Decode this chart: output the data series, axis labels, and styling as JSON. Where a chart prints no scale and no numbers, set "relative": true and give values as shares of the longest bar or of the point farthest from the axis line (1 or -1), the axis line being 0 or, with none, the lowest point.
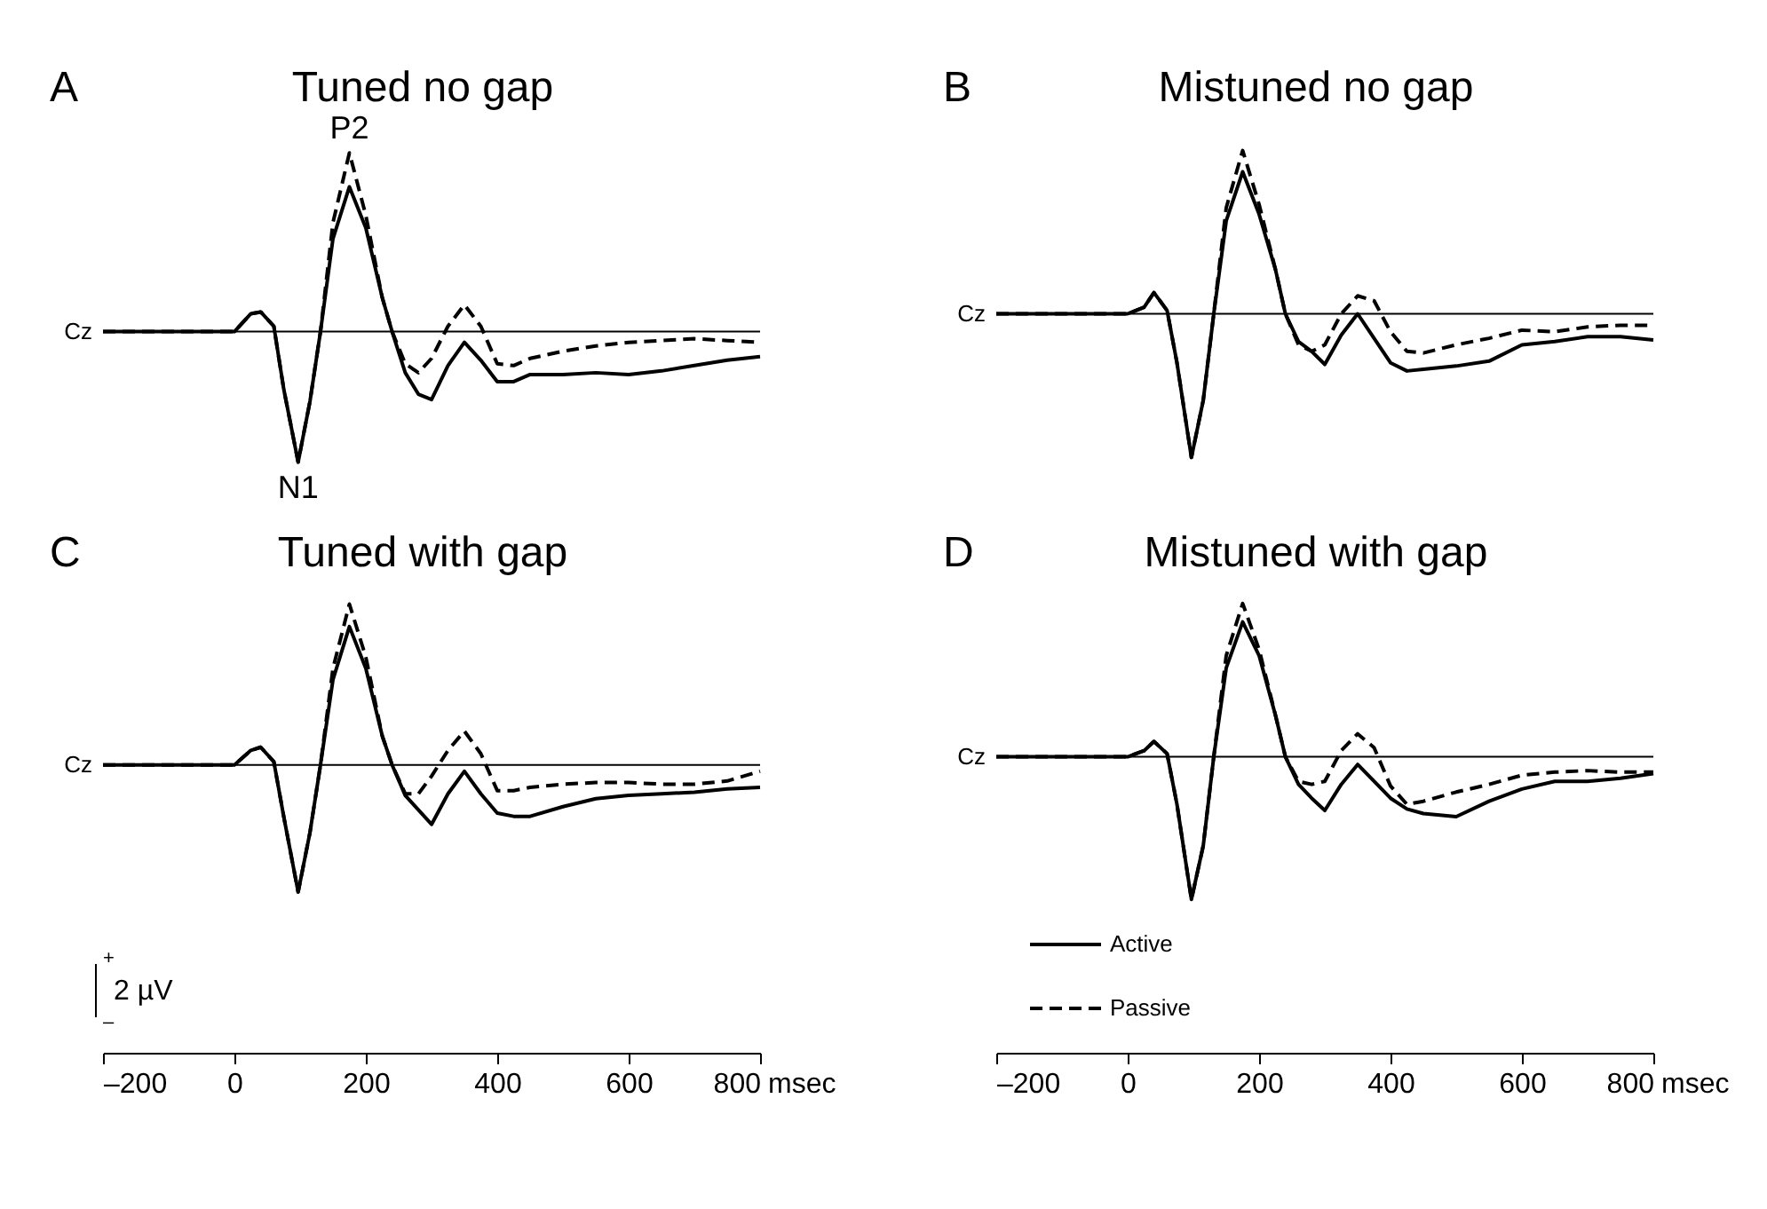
{
  "chart_data": [
    {
      "type": "line",
      "title": "Tuned no gap",
      "ylabel": "Cz",
      "relative": true,
      "tick_labels": false,
      "xlim": [
        -200,
        800
      ],
      "annotations": [
        "A",
        {
          "text": "P2",
          "x": 175,
          "y": 1
        },
        {
          "text": "N1",
          "x": 97,
          "y": -0.73
        }
      ],
      "x": [
        -200,
        -100,
        0,
        25,
        40,
        60,
        75,
        97,
        115,
        131,
        150,
        175,
        200,
        225,
        240,
        260,
        280,
        300,
        325,
        350,
        375,
        400,
        425,
        450,
        500,
        550,
        600,
        650,
        700,
        750,
        800
      ],
      "series": [
        {
          "color": "#000000",
          "line_style": "solid",
          "values": [
            0,
            0,
            0,
            0.1,
            0.11,
            0.03,
            -0.32,
            -0.73,
            -0.39,
            0,
            0.52,
            0.81,
            0.58,
            0.19,
            0,
            -0.23,
            -0.35,
            -0.38,
            -0.19,
            -0.06,
            -0.16,
            -0.28,
            -0.28,
            -0.24,
            -0.24,
            -0.23,
            -0.24,
            -0.22,
            -0.19,
            -0.16,
            -0.14
          ]
        },
        {
          "color": "#000000",
          "line_style": "dashed",
          "values": [
            0,
            0,
            0,
            0.1,
            0.11,
            0.03,
            -0.32,
            -0.73,
            -0.39,
            0,
            0.61,
            1,
            0.65,
            0.19,
            0,
            -0.18,
            -0.23,
            -0.15,
            0.03,
            0.15,
            0.03,
            -0.18,
            -0.19,
            -0.15,
            -0.11,
            -0.08,
            -0.06,
            -0.05,
            -0.04,
            -0.05,
            -0.06
          ]
        }
      ]
    },
    {
      "type": "line",
      "title": "Mistuned no gap",
      "ylabel": "Cz",
      "relative": true,
      "tick_labels": false,
      "xlim": [
        -200,
        800
      ],
      "annotations": [
        "B"
      ],
      "x": [
        -200,
        -100,
        0,
        25,
        40,
        60,
        75,
        97,
        115,
        131,
        150,
        175,
        200,
        225,
        240,
        260,
        280,
        300,
        325,
        350,
        375,
        400,
        425,
        450,
        500,
        550,
        600,
        650,
        700,
        750,
        800
      ],
      "series": [
        {
          "color": "#000000",
          "line_style": "solid",
          "values": [
            0,
            0,
            0,
            0.04,
            0.13,
            0.02,
            -0.3,
            -0.88,
            -0.53,
            0,
            0.57,
            0.87,
            0.61,
            0.27,
            0,
            -0.17,
            -0.23,
            -0.31,
            -0.13,
            0,
            -0.15,
            -0.3,
            -0.35,
            -0.34,
            -0.32,
            -0.29,
            -0.19,
            -0.17,
            -0.14,
            -0.14,
            -0.16
          ]
        },
        {
          "color": "#000000",
          "line_style": "dashed",
          "values": [
            0,
            0,
            0,
            0.04,
            0.13,
            0.02,
            -0.3,
            -0.88,
            -0.53,
            0,
            0.65,
            1,
            0.67,
            0.27,
            0,
            -0.19,
            -0.23,
            -0.19,
            0,
            0.11,
            0.08,
            -0.11,
            -0.23,
            -0.24,
            -0.19,
            -0.15,
            -0.1,
            -0.11,
            -0.08,
            -0.07,
            -0.07
          ]
        }
      ]
    },
    {
      "type": "line",
      "title": "Tuned with gap",
      "ylabel": "Cz",
      "xlabel": "msec",
      "relative": true,
      "tick_labels": "x",
      "xlim": [
        -200,
        800
      ],
      "xticks": [
        {
          "value": -200,
          "label": "–200"
        },
        0,
        200,
        400,
        600,
        800
      ],
      "annotations": [
        "C",
        "+",
        "2 µV",
        "–"
      ],
      "x": [
        -200,
        -100,
        0,
        25,
        40,
        60,
        75,
        97,
        115,
        131,
        150,
        175,
        200,
        225,
        240,
        260,
        280,
        300,
        325,
        350,
        375,
        400,
        425,
        450,
        500,
        550,
        600,
        650,
        700,
        750,
        800
      ],
      "series": [
        {
          "color": "#000000",
          "line_style": "solid",
          "values": [
            0,
            0,
            0,
            0.09,
            0.11,
            0.02,
            -0.32,
            -0.79,
            -0.42,
            0,
            0.53,
            0.86,
            0.6,
            0.18,
            0,
            -0.19,
            -0.28,
            -0.37,
            -0.18,
            -0.04,
            -0.18,
            -0.3,
            -0.32,
            -0.32,
            -0.26,
            -0.21,
            -0.19,
            -0.18,
            -0.17,
            -0.15,
            -0.14
          ]
        },
        {
          "color": "#000000",
          "line_style": "dashed",
          "values": [
            0,
            0,
            0,
            0.09,
            0.11,
            0.02,
            -0.32,
            -0.79,
            -0.42,
            0,
            0.6,
            1,
            0.67,
            0.18,
            0,
            -0.18,
            -0.18,
            -0.07,
            0.09,
            0.21,
            0.07,
            -0.16,
            -0.16,
            -0.14,
            -0.12,
            -0.11,
            -0.11,
            -0.12,
            -0.12,
            -0.1,
            -0.04
          ]
        }
      ]
    },
    {
      "type": "line",
      "title": "Mistuned with gap",
      "ylabel": "Cz",
      "xlabel": "msec",
      "relative": true,
      "tick_labels": "x",
      "xlim": [
        -200,
        800
      ],
      "legend": "bottom left",
      "xticks": [
        {
          "value": -200,
          "label": "–200"
        },
        0,
        200,
        400,
        600,
        800
      ],
      "annotations": [
        "D"
      ],
      "x": [
        -200,
        -100,
        0,
        25,
        40,
        60,
        75,
        97,
        115,
        131,
        150,
        175,
        200,
        225,
        240,
        260,
        280,
        300,
        325,
        350,
        375,
        400,
        425,
        450,
        500,
        550,
        600,
        650,
        700,
        750,
        800
      ],
      "series": [
        {
          "name": "Active",
          "color": "#000000",
          "line_style": "solid",
          "values": [
            0,
            0,
            0,
            0.04,
            0.1,
            0.02,
            -0.31,
            -0.93,
            -0.58,
            0,
            0.58,
            0.88,
            0.66,
            0.27,
            0,
            -0.18,
            -0.27,
            -0.35,
            -0.18,
            -0.05,
            -0.16,
            -0.27,
            -0.34,
            -0.37,
            -0.39,
            -0.29,
            -0.21,
            -0.16,
            -0.16,
            -0.14,
            -0.11
          ]
        },
        {
          "name": "Passive",
          "color": "#000000",
          "line_style": "dashed",
          "values": [
            0,
            0,
            0,
            0.04,
            0.1,
            0.02,
            -0.31,
            -0.93,
            -0.58,
            0,
            0.66,
            1,
            0.7,
            0.27,
            0,
            -0.16,
            -0.18,
            -0.16,
            0.04,
            0.15,
            0.06,
            -0.19,
            -0.31,
            -0.29,
            -0.23,
            -0.18,
            -0.12,
            -0.1,
            -0.09,
            -0.1,
            -0.1
          ]
        }
      ]
    }
  ]
}
